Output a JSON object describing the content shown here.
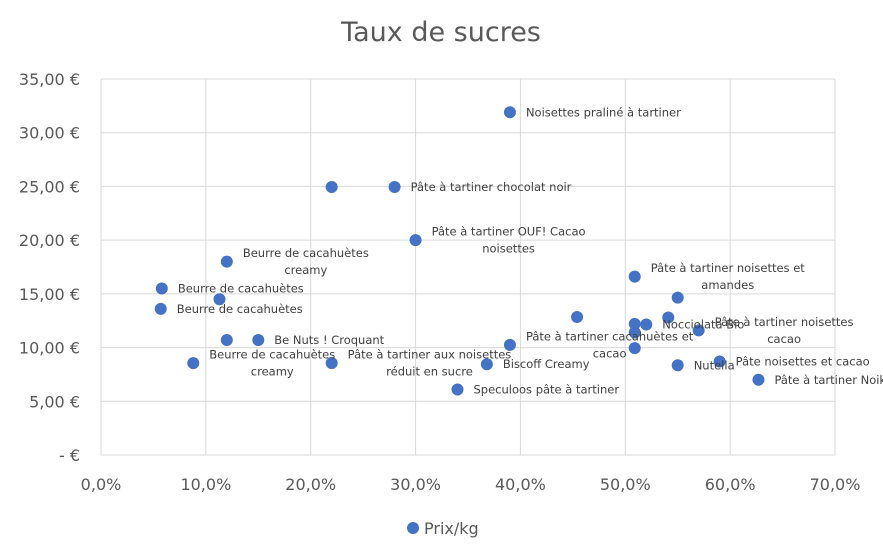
{
  "chart_data": {
    "type": "scatter",
    "title": "Taux de sucres",
    "xlabel": "",
    "ylabel": "",
    "xlim": [
      0,
      0.7
    ],
    "ylim": [
      0,
      35
    ],
    "x_ticks": [
      "0,0%",
      "10,0%",
      "20,0%",
      "30,0%",
      "40,0%",
      "50,0%",
      "60,0%",
      "70,0%"
    ],
    "y_ticks": [
      "-   €",
      "5,00 €",
      "10,00 €",
      "15,00 €",
      "20,00 €",
      "25,00 €",
      "30,00 €",
      "35,00 €"
    ],
    "grid": true,
    "legend_position": "bottom",
    "marker_color": "#4472C4",
    "series": [
      {
        "name": "Prix/kg",
        "points": [
          {
            "x": 0.39,
            "y": 31.9,
            "label": [
              "Noisettes praliné à tartiner"
            ]
          },
          {
            "x": 0.22,
            "y": 24.95,
            "label": []
          },
          {
            "x": 0.28,
            "y": 24.95,
            "label": [
              "Pâte à tartiner chocolat noir"
            ]
          },
          {
            "x": 0.3,
            "y": 20.0,
            "label": [
              "Pâte à tartiner OUF! Cacao",
              "noisettes"
            ]
          },
          {
            "x": 0.12,
            "y": 18.0,
            "label": [
              "Beurre de cacahuètes",
              "creamy"
            ]
          },
          {
            "x": 0.058,
            "y": 15.5,
            "label": [
              "Beurre de cacahuètes"
            ]
          },
          {
            "x": 0.113,
            "y": 14.5,
            "label": []
          },
          {
            "x": 0.057,
            "y": 13.6,
            "label": [
              "Beurre de cacahuètes"
            ]
          },
          {
            "x": 0.12,
            "y": 10.7,
            "label": []
          },
          {
            "x": 0.15,
            "y": 10.7,
            "label": [
              "Be Nuts ! Croquant"
            ]
          },
          {
            "x": 0.088,
            "y": 8.55,
            "label": [
              "Beurre de cacahuètes",
              "creamy"
            ]
          },
          {
            "x": 0.22,
            "y": 8.55,
            "label": [
              "Pâte à tartiner aux noisettes",
              "réduit en sucre"
            ]
          },
          {
            "x": 0.368,
            "y": 8.45,
            "label": [
              "Biscoff Creamy"
            ]
          },
          {
            "x": 0.34,
            "y": 6.1,
            "label": [
              "Speculoos pâte à tartiner"
            ]
          },
          {
            "x": 0.39,
            "y": 10.25,
            "label": [
              "Pâte à tartiner cacahuètes et",
              "cacao"
            ]
          },
          {
            "x": 0.454,
            "y": 12.85,
            "label": []
          },
          {
            "x": 0.509,
            "y": 16.6,
            "label": [
              "Pâte à tartiner noisettes et",
              "amandes"
            ]
          },
          {
            "x": 0.55,
            "y": 14.65,
            "label": []
          },
          {
            "x": 0.57,
            "y": 11.6,
            "label": [
              "Pâte à tartiner noisettes",
              "cacao"
            ]
          },
          {
            "x": 0.509,
            "y": 12.2,
            "label": []
          },
          {
            "x": 0.52,
            "y": 12.15,
            "label": [
              "Nocciolata Bio"
            ]
          },
          {
            "x": 0.541,
            "y": 12.8,
            "label": []
          },
          {
            "x": 0.509,
            "y": 11.4,
            "label": []
          },
          {
            "x": 0.509,
            "y": 9.95,
            "label": []
          },
          {
            "x": 0.55,
            "y": 8.35,
            "label": [
              "Nutella"
            ]
          },
          {
            "x": 0.59,
            "y": 8.7,
            "label": [
              "Pâte noisettes et cacao"
            ]
          },
          {
            "x": 0.627,
            "y": 7.0,
            "label": [
              "Pâte à tartiner Noikao Duo"
            ]
          }
        ]
      }
    ]
  }
}
